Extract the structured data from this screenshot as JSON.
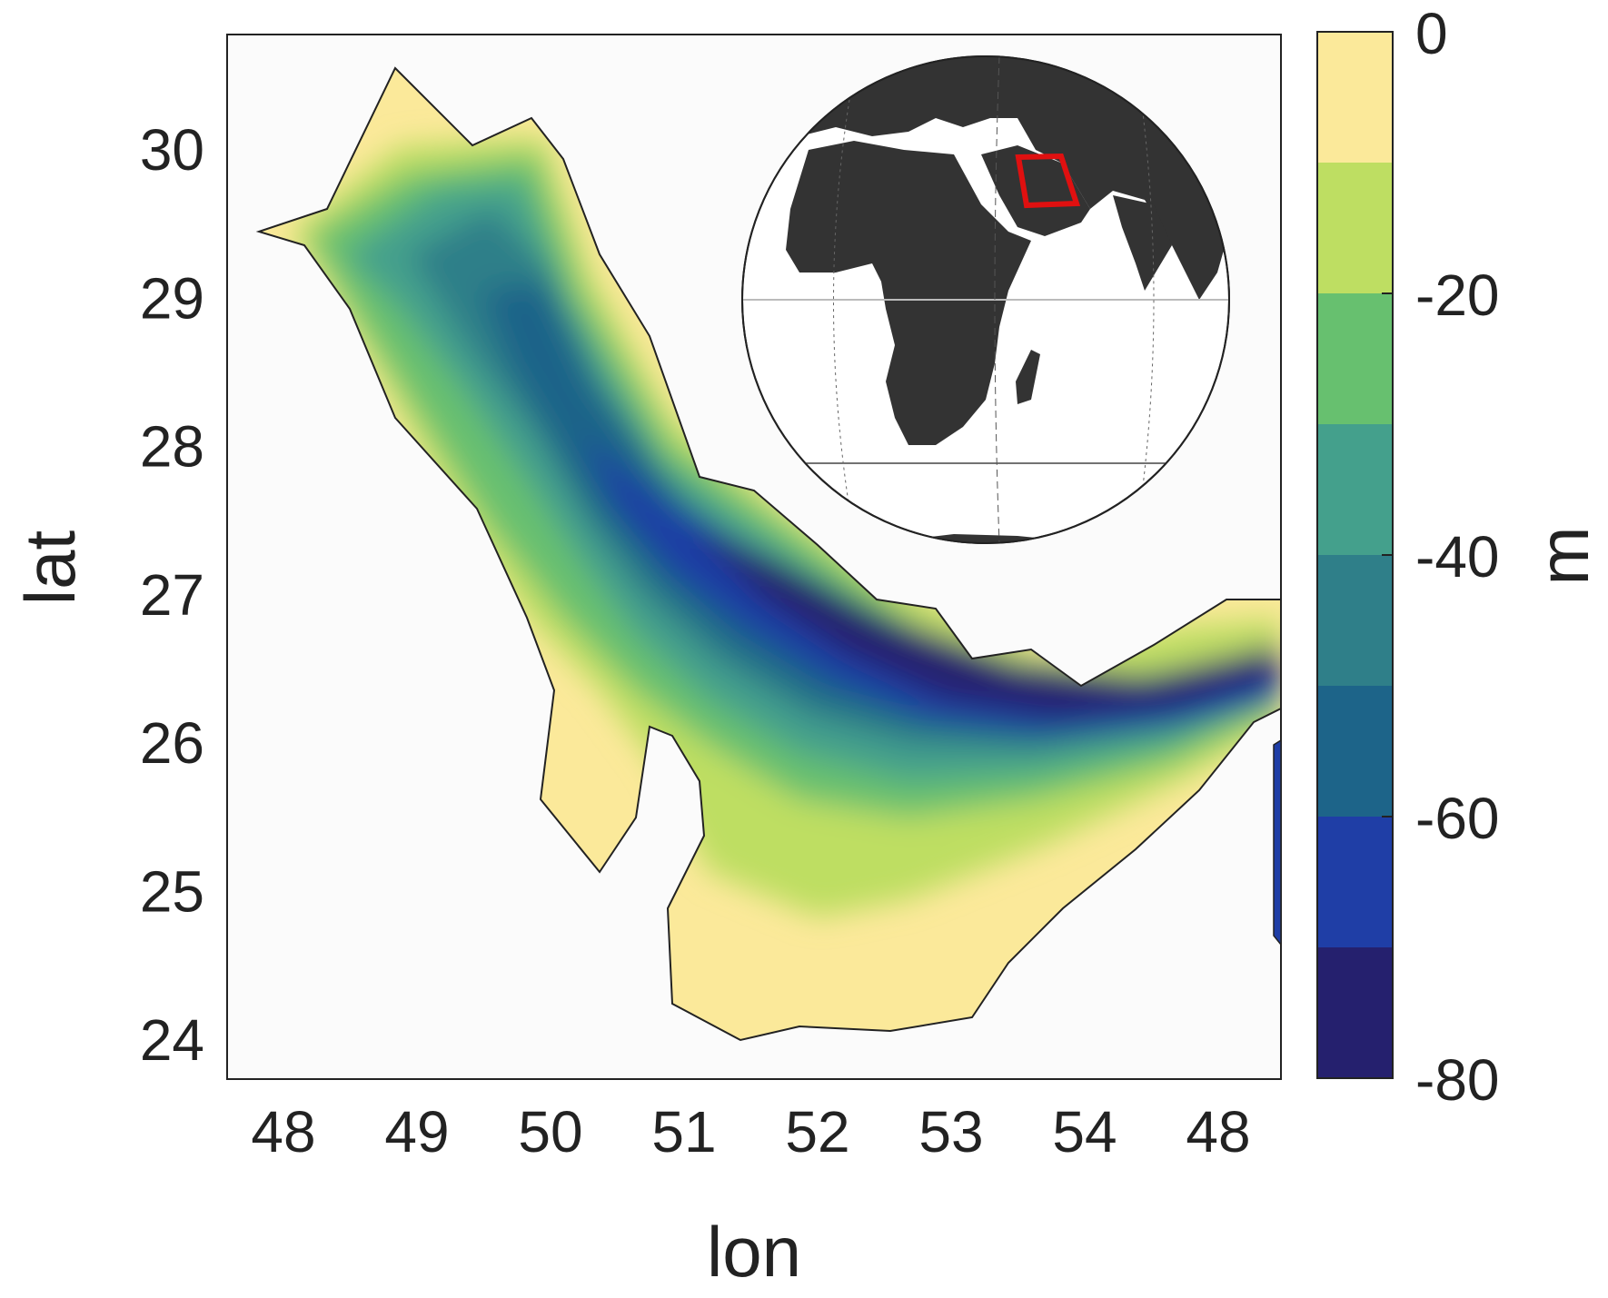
{
  "map": {
    "xlabel": "lon",
    "ylabel": "lat",
    "x_ticks": [
      "48",
      "49",
      "50",
      "51",
      "52",
      "53",
      "54",
      "48"
    ],
    "y_ticks": [
      "30",
      "29",
      "28",
      "27",
      "26",
      "25",
      "24"
    ],
    "region": "Persian Gulf",
    "inset": {
      "type": "orthographic-globe",
      "highlight": "red-box-over-gulf",
      "colors": {
        "land": "#333333",
        "ocean": "#ffffff",
        "box": "#e01010"
      }
    }
  },
  "colorbar": {
    "label": "m",
    "ticks": [
      "0",
      "-20",
      "-40",
      "-60",
      "-80"
    ],
    "range": [
      -80,
      0
    ],
    "levels": [
      {
        "from": -10,
        "to": 0,
        "color": "#fbe99a"
      },
      {
        "from": -20,
        "to": -10,
        "color": "#bede62"
      },
      {
        "from": -30,
        "to": -20,
        "color": "#67c06f"
      },
      {
        "from": -40,
        "to": -30,
        "color": "#44a08c"
      },
      {
        "from": -50,
        "to": -40,
        "color": "#2f7f89"
      },
      {
        "from": -60,
        "to": -50,
        "color": "#1d6489"
      },
      {
        "from": -70,
        "to": -60,
        "color": "#1f3ea6"
      },
      {
        "from": -80,
        "to": -70,
        "color": "#25206e"
      }
    ]
  }
}
